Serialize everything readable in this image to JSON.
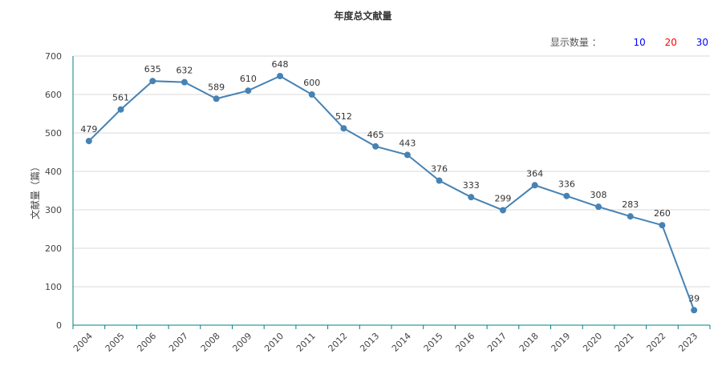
{
  "chart_data": {
    "type": "line",
    "title": "年度总文献量",
    "ylabel": "文献量（篇）",
    "xlabel": "",
    "categories": [
      "2004",
      "2005",
      "2006",
      "2007",
      "2008",
      "2009",
      "2010",
      "2011",
      "2012",
      "2013",
      "2014",
      "2015",
      "2016",
      "2017",
      "2018",
      "2019",
      "2020",
      "2021",
      "2022",
      "2023"
    ],
    "values": [
      479,
      561,
      635,
      632,
      589,
      610,
      648,
      600,
      512,
      465,
      443,
      376,
      333,
      299,
      364,
      336,
      308,
      283,
      260,
      39
    ],
    "ylim": [
      0,
      700
    ],
    "yticks": [
      0,
      100,
      200,
      300,
      400,
      500,
      600,
      700
    ],
    "grid": true,
    "line_color": "#4682b4"
  },
  "display_count": {
    "label": "显示数量 ：",
    "options": [
      {
        "label": "10",
        "color": "#0000ff"
      },
      {
        "label": "20",
        "color": "#ff0000"
      },
      {
        "label": "30",
        "color": "#0000ff"
      }
    ]
  }
}
